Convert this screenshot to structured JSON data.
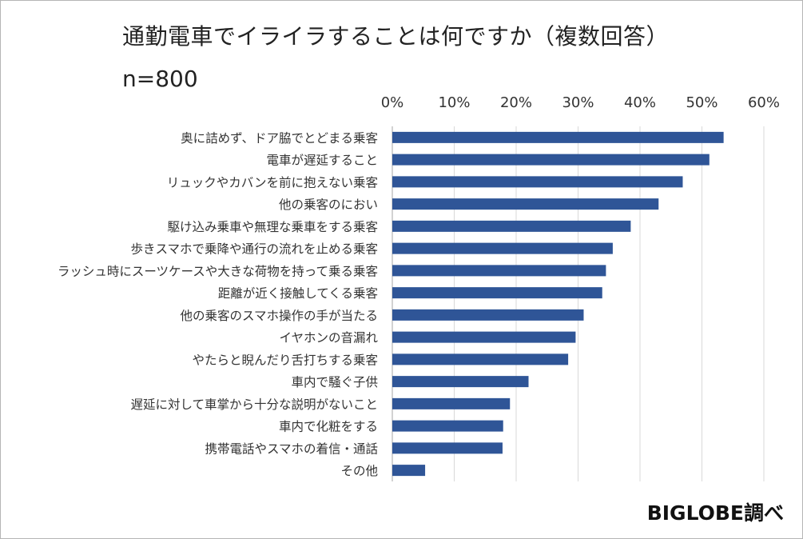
{
  "title": "通勤電車でイライラすることは何ですか（複数回答）",
  "sample_size": "n=800",
  "credit": "BIGLOBE調べ",
  "colors": {
    "bar": "#2F5597",
    "grid": "#d9d9d9",
    "axis": "#a6a6a6"
  },
  "chart_data": {
    "type": "bar",
    "orientation": "horizontal",
    "categories": [
      "奥に詰めず、ドア脇でとどまる乗客",
      "電車が遅延すること",
      "リュックやカバンを前に抱えない乗客",
      "他の乗客のにおい",
      "駆け込み乗車や無理な乗車をする乗客",
      "歩きスマホで乗降や通行の流れを止める乗客",
      "ラッシュ時にスーツケースや大きな荷物を持って乗る乗客",
      "距離が近く接触してくる乗客",
      "他の乗客のスマホ操作の手が当たる",
      "イヤホンの音漏れ",
      "やたらと睨んだり舌打ちする乗客",
      "車内で騒ぐ子供",
      "遅延に対して車掌から十分な説明がないこと",
      "車内で化粧をする",
      "携帯電話やスマホの着信・通話",
      "その他"
    ],
    "values": [
      53.5,
      51.2,
      46.9,
      43.0,
      38.5,
      35.6,
      34.5,
      33.9,
      30.9,
      29.6,
      28.4,
      22.0,
      19.0,
      17.9,
      17.8,
      5.3
    ],
    "unit": "%",
    "xlim": [
      0,
      60
    ],
    "xticks": [
      "0%",
      "10%",
      "20%",
      "30%",
      "40%",
      "50%",
      "60%"
    ],
    "xtick_values": [
      0,
      10,
      20,
      30,
      40,
      50,
      60
    ],
    "axis_position": "top",
    "grid": true,
    "legend": "none"
  }
}
